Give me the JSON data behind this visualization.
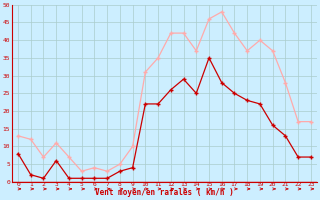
{
  "x": [
    0,
    1,
    2,
    3,
    4,
    5,
    6,
    7,
    8,
    9,
    10,
    11,
    12,
    13,
    14,
    15,
    16,
    17,
    18,
    19,
    20,
    21,
    22,
    23
  ],
  "wind_avg": [
    8,
    2,
    1,
    6,
    1,
    1,
    1,
    1,
    3,
    4,
    22,
    22,
    26,
    29,
    25,
    35,
    28,
    25,
    23,
    22,
    16,
    13,
    7,
    7
  ],
  "wind_gust": [
    13,
    12,
    7,
    11,
    7,
    3,
    4,
    3,
    5,
    10,
    31,
    35,
    42,
    42,
    37,
    46,
    48,
    42,
    37,
    40,
    37,
    28,
    17,
    17
  ],
  "color_avg": "#cc0000",
  "color_gust": "#ffaaaa",
  "bg_color": "#cceeff",
  "grid_color": "#aacccc",
  "xlabel": "Vent moyen/en rafales ( km/h )",
  "xlabel_color": "#cc0000",
  "tick_color": "#cc0000",
  "ylim": [
    0,
    50
  ],
  "yticks": [
    0,
    5,
    10,
    15,
    20,
    25,
    30,
    35,
    40,
    45,
    50
  ],
  "xticks": [
    0,
    1,
    2,
    3,
    4,
    5,
    6,
    7,
    8,
    9,
    10,
    11,
    12,
    13,
    14,
    15,
    16,
    17,
    18,
    19,
    20,
    21,
    22,
    23
  ]
}
